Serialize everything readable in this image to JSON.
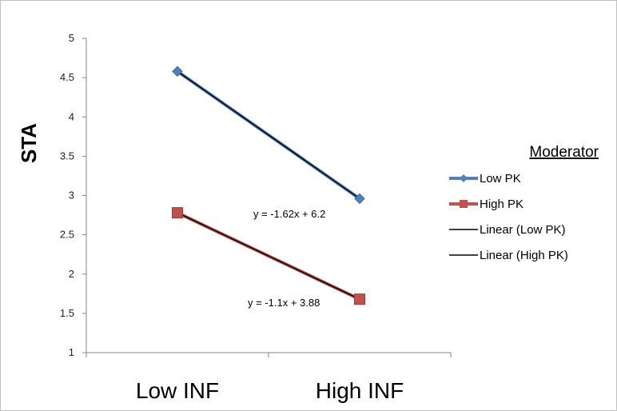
{
  "chart_data": {
    "type": "line",
    "categories": [
      "Low INF",
      "High INF"
    ],
    "series": [
      {
        "name": "Low PK",
        "values": [
          4.58,
          2.96
        ],
        "color": "#4f81bd",
        "marker": "diamond"
      },
      {
        "name": "High PK",
        "values": [
          2.78,
          1.68
        ],
        "color": "#c0504d",
        "marker": "square"
      }
    ],
    "trendlines": [
      {
        "name": "Linear (Low PK)",
        "equation": "y = -1.62x + 6.2",
        "slope": -1.62,
        "intercept": 6.2,
        "color": "#000000"
      },
      {
        "name": "Linear (High PK)",
        "equation": "y = -1.1x + 3.88",
        "slope": -1.1,
        "intercept": 3.88,
        "color": "#000000"
      }
    ],
    "ylabel": "STA",
    "ylim": [
      1,
      5
    ],
    "yticks": [
      "1",
      "1.5",
      "2",
      "2.5",
      "3",
      "3.5",
      "4",
      "4.5",
      "5"
    ],
    "legend_title": "Moderator",
    "legend_position": "right",
    "grid": false
  }
}
